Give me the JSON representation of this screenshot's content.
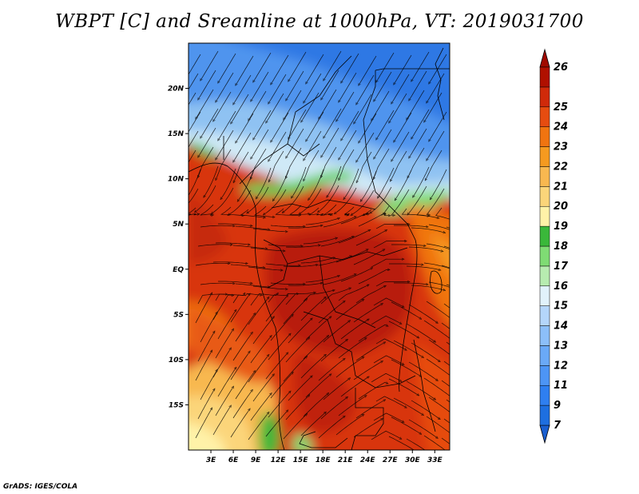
{
  "title": "WBPT [C] and Sreamline at 1000hPa, VT: 2019031700",
  "credit": "GrADS: IGES/COLA",
  "map": {
    "lon_range": [
      0,
      35
    ],
    "lat_range": [
      -20,
      25
    ],
    "lat_ticks": [
      {
        "value": 20,
        "label": "20N"
      },
      {
        "value": 15,
        "label": "15N"
      },
      {
        "value": 10,
        "label": "10N"
      },
      {
        "value": 5,
        "label": "5N"
      },
      {
        "value": 0,
        "label": "EQ"
      },
      {
        "value": -5,
        "label": "5S"
      },
      {
        "value": -10,
        "label": "10S"
      },
      {
        "value": -15,
        "label": "15S"
      }
    ],
    "lon_ticks": [
      {
        "value": 3,
        "label": "3E"
      },
      {
        "value": 6,
        "label": "6E"
      },
      {
        "value": 9,
        "label": "9E"
      },
      {
        "value": 12,
        "label": "12E"
      },
      {
        "value": 15,
        "label": "15E"
      },
      {
        "value": 18,
        "label": "18E"
      },
      {
        "value": 21,
        "label": "21E"
      },
      {
        "value": 24,
        "label": "24E"
      },
      {
        "value": 27,
        "label": "27E"
      },
      {
        "value": 30,
        "label": "30E"
      },
      {
        "value": 33,
        "label": "33E"
      }
    ]
  },
  "colorbar": {
    "levels": [
      {
        "label": "7",
        "color": "#1e6fe0"
      },
      {
        "label": "9",
        "color": "#2f7ff0"
      },
      {
        "label": "11",
        "color": "#4d95f5"
      },
      {
        "label": "12",
        "color": "#6aa9f7"
      },
      {
        "label": "13",
        "color": "#8cbff9"
      },
      {
        "label": "14",
        "color": "#b4d6fb"
      },
      {
        "label": "15",
        "color": "#e1f2fb"
      },
      {
        "label": "16",
        "color": "#b7ecb0"
      },
      {
        "label": "17",
        "color": "#7fdc74"
      },
      {
        "label": "18",
        "color": "#3ab83a"
      },
      {
        "label": "19",
        "color": "#fff2a8"
      },
      {
        "label": "20",
        "color": "#fbd57a"
      },
      {
        "label": "21",
        "color": "#f8b850"
      },
      {
        "label": "22",
        "color": "#f59a20"
      },
      {
        "label": "23",
        "color": "#f07410"
      },
      {
        "label": "24",
        "color": "#e64c10"
      },
      {
        "label": "25",
        "color": "#d02a0a"
      },
      {
        "label": "26",
        "color": "#b01000"
      }
    ],
    "under_color": "#1a5fd0",
    "over_color": "#a00a00"
  }
}
